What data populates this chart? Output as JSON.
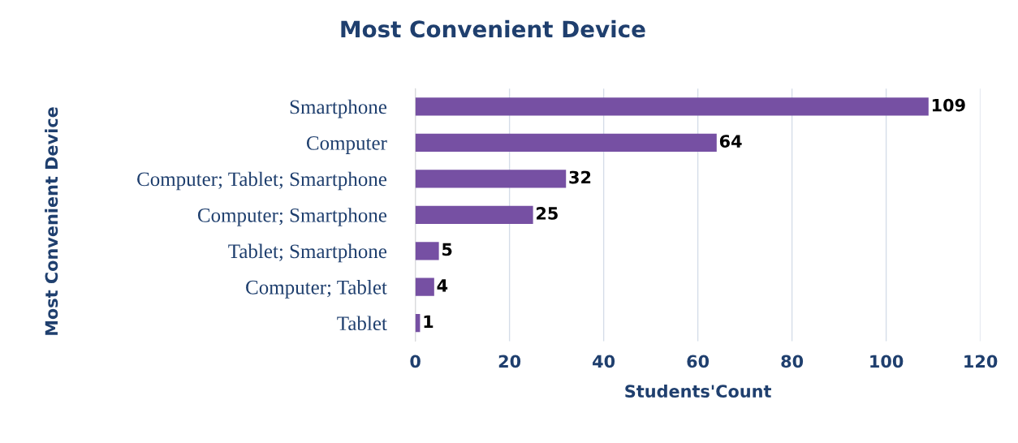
{
  "chart_data": {
    "type": "bar",
    "orientation": "horizontal",
    "title": "Most Convenient Device",
    "xlabel": "Students'Count",
    "ylabel": "Most Convenient Device",
    "categories": [
      "Smartphone",
      "Computer",
      "Computer; Tablet; Smartphone",
      "Computer; Smartphone",
      "Tablet; Smartphone",
      "Computer; Tablet",
      "Tablet"
    ],
    "values": [
      109,
      64,
      32,
      25,
      5,
      4,
      1
    ],
    "color": "#7650a3",
    "xlim": [
      0,
      120
    ],
    "xticks": [
      0,
      20,
      40,
      60,
      80,
      100,
      120
    ],
    "grid": "x",
    "data_labels": true
  }
}
